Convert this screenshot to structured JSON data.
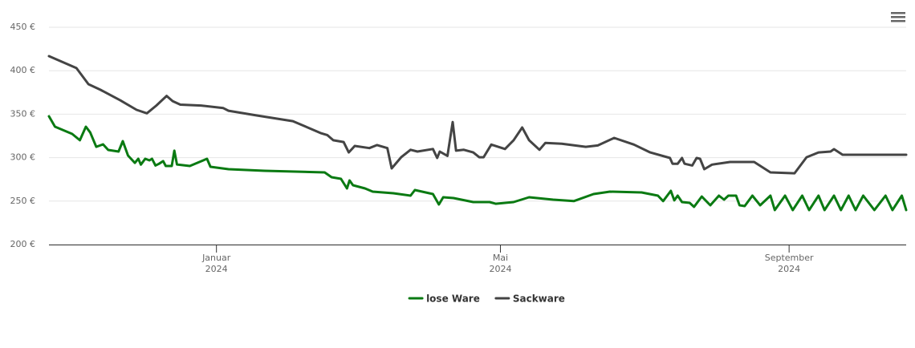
{
  "chart_data": {
    "type": "line",
    "xlim": [
      2023.805,
      2024.803
    ],
    "xticks": [
      {
        "value": 2024.0,
        "label": [
          "Januar",
          "2024"
        ]
      },
      {
        "value": 2024.3306,
        "label": [
          "Mai",
          "2024"
        ]
      },
      {
        "value": 2024.6667,
        "label": [
          "September",
          "2024"
        ]
      }
    ],
    "ylim": [
      200,
      450
    ],
    "yticks": [
      {
        "value": 200,
        "label": "200 €"
      },
      {
        "value": 250,
        "label": "250 €"
      },
      {
        "value": 300,
        "label": "300 €"
      },
      {
        "value": 350,
        "label": "350 €"
      },
      {
        "value": 400,
        "label": "400 €"
      },
      {
        "value": 450,
        "label": "450 €"
      }
    ],
    "grid": true,
    "legend": "bottom",
    "series": [
      {
        "name": "lose Ware",
        "color": "#0a7a12",
        "x": [
          2023.805,
          2023.812,
          2023.832,
          2023.841,
          2023.848,
          2023.853,
          2023.86,
          2023.868,
          2023.874,
          2023.886,
          2023.891,
          2023.897,
          2023.905,
          2023.909,
          2023.912,
          2023.917,
          2023.922,
          2023.925,
          2023.929,
          2023.933,
          2023.938,
          2023.941,
          2023.948,
          2023.951,
          2023.954,
          2023.969,
          2023.989,
          2023.993,
          2024.014,
          2024.056,
          2024.126,
          2024.134,
          2024.145,
          2024.152,
          2024.155,
          2024.159,
          2024.173,
          2024.182,
          2024.206,
          2024.226,
          2024.231,
          2024.252,
          2024.259,
          2024.264,
          2024.276,
          2024.299,
          2024.318,
          2024.325,
          2024.346,
          2024.364,
          2024.392,
          2024.416,
          2024.439,
          2024.458,
          2024.495,
          2024.514,
          2024.52,
          2024.529,
          2024.533,
          2024.537,
          2024.542,
          2024.551,
          2024.556,
          2024.565,
          2024.575,
          2024.585,
          2024.591,
          2024.596,
          2024.605,
          2024.609,
          2024.615,
          2024.624,
          2024.633,
          2024.645,
          2024.65,
          2024.662,
          2024.671,
          2024.682,
          2024.69,
          2024.701,
          2024.708,
          2024.719,
          2024.727,
          2024.736,
          2024.744,
          2024.753,
          2024.766,
          2024.779,
          2024.787,
          2024.798,
          2024.803
        ],
        "values": [
          347.6,
          335.6,
          327.3,
          320.0,
          335.6,
          329.0,
          312.5,
          315.3,
          308.9,
          307.0,
          319.0,
          302.4,
          294.0,
          298.7,
          292.0,
          298.7,
          296.9,
          298.7,
          291.0,
          292.9,
          296.0,
          290.4,
          290.4,
          308.0,
          292.2,
          290.4,
          298.7,
          289.5,
          286.7,
          284.9,
          283.0,
          277.5,
          275.6,
          264.6,
          273.8,
          268.3,
          264.6,
          260.9,
          259.0,
          256.3,
          262.7,
          258.1,
          246.1,
          254.4,
          253.5,
          248.9,
          248.9,
          247.0,
          248.9,
          254.4,
          251.7,
          250.0,
          258.1,
          260.9,
          260.0,
          256.3,
          250.0,
          261.8,
          250.8,
          256.3,
          248.9,
          248.0,
          243.4,
          255.3,
          245.2,
          256.3,
          251.7,
          256.3,
          256.3,
          245.2,
          244.3,
          256.3,
          245.2,
          256.3,
          239.7,
          256.3,
          239.7,
          256.3,
          239.7,
          256.3,
          239.7,
          256.3,
          239.7,
          256.3,
          239.7,
          256.3,
          239.7,
          256.3,
          239.7,
          256.3,
          239.7
        ]
      },
      {
        "name": "Sackware",
        "color": "#444444",
        "x": [
          2023.805,
          2023.837,
          2023.851,
          2023.865,
          2023.888,
          2023.907,
          2023.919,
          2023.93,
          2023.942,
          2023.949,
          2023.958,
          2023.982,
          2024.008,
          2024.014,
          2024.047,
          2024.089,
          2024.122,
          2024.129,
          2024.136,
          2024.148,
          2024.154,
          2024.161,
          2024.178,
          2024.187,
          2024.199,
          2024.204,
          2024.215,
          2024.226,
          2024.234,
          2024.252,
          2024.257,
          2024.26,
          2024.269,
          2024.275,
          2024.279,
          2024.288,
          2024.299,
          2024.306,
          2024.311,
          2024.32,
          2024.336,
          2024.346,
          2024.356,
          2024.364,
          2024.376,
          2024.383,
          2024.402,
          2024.43,
          2024.444,
          2024.463,
          2024.486,
          2024.505,
          2024.528,
          2024.531,
          2024.537,
          2024.542,
          2024.545,
          2024.554,
          2024.559,
          2024.563,
          2024.568,
          2024.577,
          2024.598,
          2024.626,
          2024.645,
          2024.673,
          2024.687,
          2024.701,
          2024.715,
          2024.719,
          2024.729,
          2024.803
        ],
        "values": [
          416.8,
          403.0,
          384.5,
          378.0,
          366.0,
          355.0,
          351.0,
          360.0,
          371.0,
          365.0,
          361.0,
          360.0,
          357.0,
          354.0,
          348.5,
          342.0,
          328.0,
          326.0,
          320.0,
          318.0,
          306.0,
          313.5,
          311.0,
          314.5,
          311.0,
          287.6,
          300.5,
          309.0,
          307.0,
          310.0,
          299.6,
          307.0,
          302.0,
          341.0,
          308.0,
          309.0,
          306.0,
          300.5,
          300.5,
          315.0,
          310.0,
          320.0,
          334.7,
          320.0,
          309.0,
          317.0,
          316.0,
          312.5,
          314.0,
          322.7,
          315.0,
          306.0,
          299.6,
          293.0,
          293.0,
          299.6,
          293.0,
          291.0,
          299.6,
          298.7,
          286.7,
          292.0,
          295.0,
          295.0,
          283.0,
          282.0,
          300.5,
          306.0,
          307.0,
          309.8,
          303.3,
          303.3
        ]
      }
    ]
  }
}
